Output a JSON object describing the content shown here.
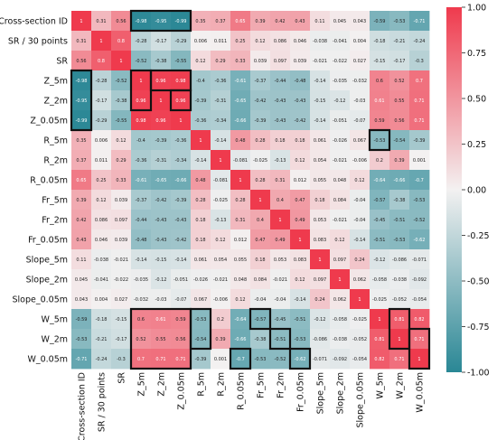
{
  "chart_data": {
    "type": "heatmap",
    "labels": [
      "Cross-section ID",
      "SR / 30 points",
      "SR",
      "Z_5m",
      "Z_2m",
      "Z_0.05m",
      "R_5m",
      "R_2m",
      "R_0.05m",
      "Fr_5m",
      "Fr_2m",
      "Fr_0.05m",
      "Slope_5m",
      "Slope_2m",
      "Slope_0.05m",
      "W_5m",
      "W_2m",
      "W_0.05m"
    ],
    "matrix": [
      [
        1,
        0.31,
        0.56,
        -0.98,
        -0.95,
        -0.99,
        0.35,
        0.37,
        0.65,
        0.39,
        0.42,
        0.43,
        0.11,
        0.045,
        0.043,
        -0.59,
        -0.53,
        -0.71
      ],
      [
        0.31,
        1,
        0.8,
        -0.28,
        -0.17,
        -0.29,
        0.006,
        0.011,
        0.25,
        0.12,
        0.086,
        0.046,
        -0.038,
        -0.041,
        0.004,
        -0.18,
        -0.21,
        -0.24
      ],
      [
        0.56,
        0.8,
        1,
        -0.52,
        -0.38,
        -0.55,
        0.12,
        0.29,
        0.33,
        0.039,
        0.097,
        0.039,
        -0.021,
        -0.022,
        0.027,
        -0.15,
        -0.17,
        -0.3
      ],
      [
        -0.98,
        -0.28,
        -0.52,
        1,
        0.96,
        0.98,
        -0.4,
        -0.36,
        -0.61,
        -0.37,
        -0.44,
        -0.48,
        -0.14,
        -0.035,
        -0.032,
        0.6,
        0.52,
        0.7
      ],
      [
        -0.95,
        -0.17,
        -0.38,
        0.96,
        1,
        0.96,
        -0.39,
        -0.31,
        -0.65,
        -0.42,
        -0.43,
        -0.43,
        -0.15,
        -0.12,
        -0.03,
        0.61,
        0.55,
        0.71
      ],
      [
        -0.99,
        -0.29,
        -0.55,
        0.98,
        0.96,
        1,
        -0.36,
        -0.34,
        -0.66,
        -0.39,
        -0.43,
        -0.42,
        -0.14,
        -0.051,
        -0.07,
        0.59,
        0.56,
        0.71
      ],
      [
        0.35,
        0.006,
        0.12,
        -0.4,
        -0.39,
        -0.36,
        1,
        -0.14,
        0.48,
        0.28,
        0.18,
        0.18,
        0.061,
        -0.026,
        0.067,
        -0.53,
        -0.54,
        -0.39
      ],
      [
        0.37,
        0.011,
        0.29,
        -0.36,
        -0.31,
        -0.34,
        -0.14,
        1,
        -0.081,
        -0.025,
        -0.13,
        0.12,
        0.054,
        -0.021,
        -0.006,
        0.2,
        0.39,
        0.001
      ],
      [
        0.65,
        0.25,
        0.33,
        -0.61,
        -0.65,
        -0.66,
        0.48,
        -0.081,
        1,
        0.28,
        0.31,
        0.012,
        0.055,
        0.048,
        0.12,
        -0.64,
        -0.66,
        -0.7
      ],
      [
        0.39,
        0.12,
        0.039,
        -0.37,
        -0.42,
        -0.39,
        0.28,
        -0.025,
        0.28,
        1,
        0.4,
        0.47,
        0.18,
        0.084,
        -0.04,
        -0.57,
        -0.38,
        -0.53
      ],
      [
        0.42,
        0.086,
        0.097,
        -0.44,
        -0.43,
        -0.43,
        0.18,
        -0.13,
        0.31,
        0.4,
        1,
        0.49,
        0.053,
        -0.021,
        -0.04,
        -0.45,
        -0.51,
        -0.52
      ],
      [
        0.43,
        0.046,
        0.039,
        -0.48,
        -0.43,
        -0.42,
        0.18,
        0.12,
        0.012,
        0.47,
        0.49,
        1,
        0.083,
        0.12,
        -0.14,
        -0.51,
        -0.53,
        -0.62
      ],
      [
        0.11,
        -0.038,
        -0.021,
        -0.14,
        -0.15,
        -0.14,
        0.061,
        0.054,
        0.055,
        0.18,
        0.053,
        0.083,
        1,
        0.097,
        0.24,
        -0.12,
        -0.086,
        -0.071
      ],
      [
        0.045,
        -0.041,
        -0.022,
        -0.035,
        -0.12,
        -0.051,
        -0.026,
        -0.021,
        0.048,
        0.084,
        -0.021,
        0.12,
        0.097,
        1,
        0.062,
        -0.058,
        -0.038,
        -0.092
      ],
      [
        0.043,
        0.004,
        0.027,
        -0.032,
        -0.03,
        -0.07,
        0.067,
        -0.006,
        0.12,
        -0.04,
        -0.04,
        -0.14,
        0.24,
        0.062,
        1,
        -0.025,
        -0.052,
        -0.054
      ],
      [
        -0.59,
        -0.18,
        -0.15,
        0.6,
        0.61,
        0.59,
        -0.53,
        0.2,
        -0.64,
        -0.57,
        -0.45,
        -0.51,
        -0.12,
        -0.058,
        -0.025,
        1,
        0.81,
        0.82
      ],
      [
        -0.53,
        -0.21,
        -0.17,
        0.52,
        0.55,
        0.56,
        -0.54,
        0.39,
        -0.66,
        -0.38,
        -0.51,
        -0.53,
        -0.086,
        -0.038,
        -0.052,
        0.81,
        1,
        0.71
      ],
      [
        -0.71,
        -0.24,
        -0.3,
        0.7,
        0.71,
        0.71,
        -0.39,
        0.001,
        -0.7,
        -0.53,
        -0.52,
        -0.62,
        -0.071,
        -0.092,
        -0.054,
        0.82,
        0.71,
        1
      ]
    ],
    "value_range": [
      -1,
      1
    ],
    "colorbar": {
      "ticks": [
        1.0,
        0.75,
        0.5,
        0.25,
        0.0,
        -0.25,
        -0.5,
        -0.75,
        -1.0
      ],
      "tick_labels": [
        "1.00",
        "0.75",
        "0.50",
        "0.25",
        "0.00",
        "-0.25",
        "-0.50",
        "-0.75",
        "-1.00"
      ],
      "colors": {
        "negative": "#2a8795",
        "neutral": "#f3f1f1",
        "positive": "#ef3a4d"
      }
    },
    "highlight_boxes": [
      {
        "rows": [
          3,
          5
        ],
        "cols": [
          0,
          0
        ]
      },
      {
        "rows": [
          0,
          0
        ],
        "cols": [
          3,
          5
        ]
      },
      {
        "rows": [
          3,
          3
        ],
        "cols": [
          4,
          5
        ]
      },
      {
        "rows": [
          4,
          4
        ],
        "cols": [
          5,
          5
        ]
      },
      {
        "rows": [
          15,
          16
        ],
        "cols": [
          6,
          6
        ]
      },
      {
        "rows": [
          17,
          17
        ],
        "cols": [
          8,
          8
        ]
      },
      {
        "rows": [
          15,
          15
        ],
        "cols": [
          9,
          9
        ]
      },
      {
        "rows": [
          16,
          16
        ],
        "cols": [
          10,
          10
        ]
      },
      {
        "rows": [
          17,
          17
        ],
        "cols": [
          11,
          11
        ]
      },
      {
        "rows": [
          6,
          6
        ],
        "cols": [
          15,
          15
        ]
      },
      {
        "rows": [
          15,
          16
        ],
        "cols": [
          16,
          16
        ]
      },
      {
        "rows": [
          16,
          17
        ],
        "cols": [
          17,
          17
        ]
      },
      {
        "rows": [
          3,
          4
        ],
        "cols": [
          3,
          3
        ]
      },
      {
        "rows": [
          15,
          17
        ],
        "cols": [
          3,
          5
        ]
      }
    ]
  }
}
